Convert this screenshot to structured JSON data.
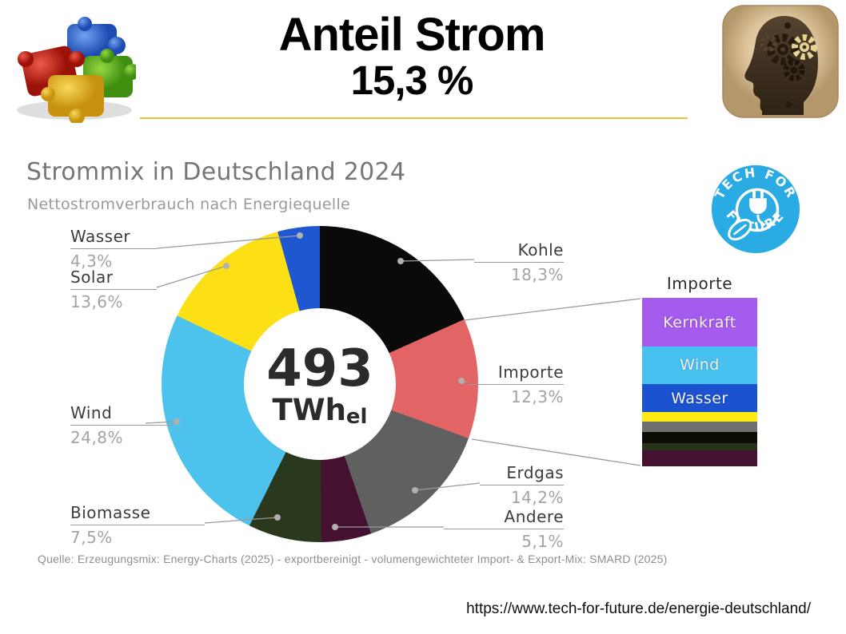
{
  "slide": {
    "title_line1": "Anteil Strom",
    "title_line2": "15,3 %",
    "accent_line_color": "#e2c43c",
    "url": "https://www.tech-for-future.de/energie-deutschland/"
  },
  "chart": {
    "title": "Strommix in Deutschland 2024",
    "subtitle": "Nettostromverbrauch nach Energiequelle",
    "source": "Quelle: Erzeugungsmix: Energy-Charts (2025) - exportbereinigt - volumengewichteter Import- & Export-Mix: SMARD (2025)",
    "center_value": "493",
    "center_unit": "TWh",
    "center_unit_sub": "el"
  },
  "chart_data": {
    "type": "pie",
    "variant": "donut",
    "title": "Strommix in Deutschland 2024",
    "subtitle": "Nettostromverbrauch nach Energiequelle",
    "center_total": "493 TWhel",
    "start_angle_deg": 0,
    "direction": "clockwise",
    "segments": [
      {
        "name": "Kohle",
        "value": 18.3,
        "value_label": "18,3%",
        "color": "#0a0a0a"
      },
      {
        "name": "Importe",
        "value": 12.3,
        "value_label": "12,3%",
        "color": "#e26464"
      },
      {
        "name": "Erdgas",
        "value": 14.2,
        "value_label": "14,2%",
        "color": "#606060"
      },
      {
        "name": "Andere",
        "value": 5.1,
        "value_label": "5,1%",
        "color": "#441230"
      },
      {
        "name": "Biomasse",
        "value": 7.5,
        "value_label": "7,5%",
        "color": "#2a381d"
      },
      {
        "name": "Wind",
        "value": 24.8,
        "value_label": "24,8%",
        "color": "#4cc2ec"
      },
      {
        "name": "Solar",
        "value": 13.6,
        "value_label": "13,6%",
        "color": "#fcdf15"
      },
      {
        "name": "Wasser",
        "value": 4.3,
        "value_label": "4,3%",
        "color": "#1e57d0"
      }
    ]
  },
  "import_bar": {
    "title": "Importe",
    "segments": [
      {
        "name": "Kernkraft",
        "share_pct": 29.0,
        "color": "#a55bee",
        "label_visible": true
      },
      {
        "name": "Wind",
        "share_pct": 22.0,
        "color": "#47c1f0",
        "label_visible": true
      },
      {
        "name": "Wasser",
        "share_pct": 17.0,
        "color": "#1b52cf",
        "label_visible": true
      },
      {
        "name": "Solar",
        "share_pct": 5.5,
        "color": "#ffe912",
        "label_visible": false
      },
      {
        "name": "Erdgas",
        "share_pct": 6.0,
        "color": "#6f6f6f",
        "label_visible": false
      },
      {
        "name": "Kohle",
        "share_pct": 7.0,
        "color": "#0c0c04",
        "label_visible": false
      },
      {
        "name": "Biomasse",
        "share_pct": 4.0,
        "color": "#26331a",
        "label_visible": false
      },
      {
        "name": "Andere",
        "share_pct": 9.5,
        "color": "#441230",
        "label_visible": false
      }
    ]
  },
  "logo_tff": {
    "text_top": "TECH FOR",
    "text_bottom": "FUTURE",
    "color": "#2aabe3"
  },
  "icons": {
    "top_left": "puzzle-pieces-icon",
    "top_right": "head-gears-icon",
    "logo_center": "plug-leaf-icon"
  }
}
